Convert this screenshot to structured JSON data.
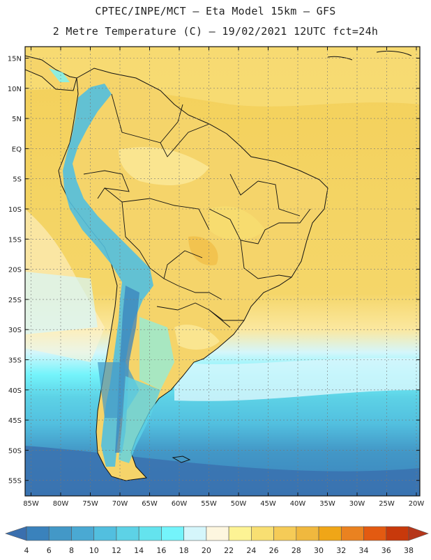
{
  "header": {
    "title_line1": "CPTEC/INPE/MCT –  Eta Model 15km – GFS",
    "title_line2": "2 Metre Temperature (C) – 19/02/2021 12UTC fct=24h"
  },
  "map": {
    "lat_labels": [
      "15N",
      "10N",
      "5N",
      "EQ",
      "5S",
      "10S",
      "15S",
      "20S",
      "25S",
      "30S",
      "35S",
      "40S",
      "45S",
      "50S",
      "55S"
    ],
    "lon_labels": [
      "85W",
      "80W",
      "75W",
      "70W",
      "65W",
      "60W",
      "55W",
      "50W",
      "45W",
      "40W",
      "35W",
      "30W",
      "25W",
      "20W"
    ],
    "colors": {
      "ocean_warm": "#f3d05a",
      "ocean_warm_light": "#f8de7a",
      "land_warm": "#f5d46a",
      "land_pale": "#fbe89a",
      "cream": "#fdf4d6",
      "border": "#111111"
    }
  },
  "legend": {
    "labels": [
      "4",
      "6",
      "8",
      "10",
      "12",
      "14",
      "16",
      "18",
      "20",
      "22",
      "24",
      "26",
      "28",
      "30",
      "32",
      "34",
      "36",
      "38"
    ],
    "colors": [
      "#3a6fae",
      "#3a82bc",
      "#4398c7",
      "#4aa9d3",
      "#52bfdf",
      "#5dd2e6",
      "#64e3ee",
      "#74f4fb",
      "#d5f6fb",
      "#fdf6df",
      "#fdf394",
      "#f8df72",
      "#f5cb57",
      "#f0b83e",
      "#f0a617",
      "#ea8220",
      "#e35a11",
      "#c8390b",
      "#b5361a"
    ]
  }
}
